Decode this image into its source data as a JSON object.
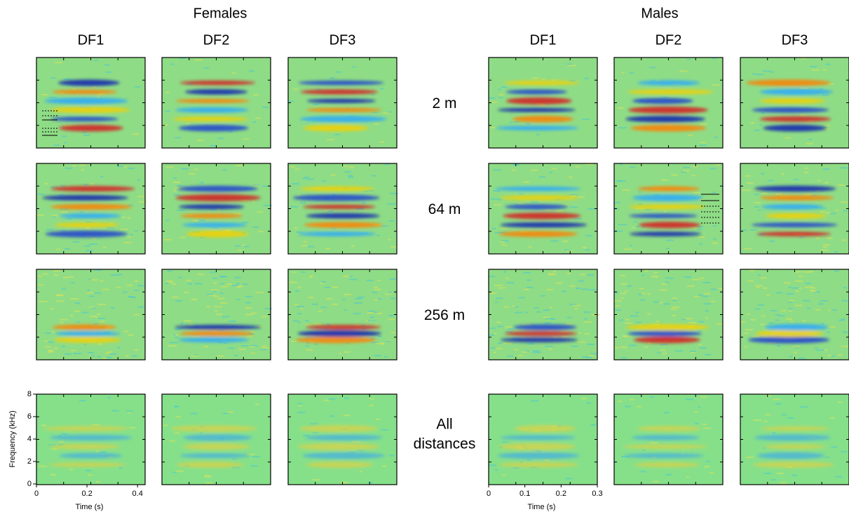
{
  "figure": {
    "females": {
      "title": "Females",
      "columns": [
        "DF1",
        "DF2",
        "DF3"
      ]
    },
    "males": {
      "title": "Males",
      "columns": [
        "DF1",
        "DF2",
        "DF3"
      ]
    },
    "row_labels": [
      "2 m",
      "64 m",
      "256 m"
    ],
    "final_row_label": [
      "All",
      "distances"
    ],
    "ylabel": "Frequency (kHz)",
    "ylim": [
      0,
      8
    ],
    "yticks": [
      0,
      2,
      4,
      6,
      8
    ],
    "female_x": {
      "label": "Time (s)",
      "lim": [
        0,
        0.43
      ],
      "ticks": [
        0,
        0.2,
        0.4
      ]
    },
    "male_x": {
      "label": "Time (s)",
      "lim": [
        0,
        0.3
      ],
      "ticks": [
        0,
        0.1,
        0.2,
        0.3
      ]
    }
  }
}
